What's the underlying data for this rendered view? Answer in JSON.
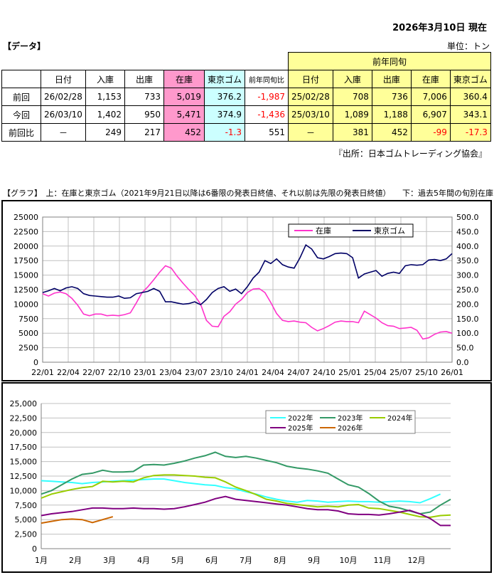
{
  "header": {
    "date_text": "2026年3月10日 現在",
    "data_label": "【データ】",
    "unit": "単位：トン"
  },
  "table": {
    "prev_year_label": "前年同旬",
    "headers_current": [
      "日付",
      "入庫",
      "出庫",
      "在庫",
      "東京ゴム",
      "前年同旬比"
    ],
    "headers_prev": [
      "日付",
      "入庫",
      "出庫",
      "在庫",
      "東京ゴム"
    ],
    "rows": [
      {
        "label": "前回",
        "date": "26/02/28",
        "in": "1,153",
        "out": "733",
        "stock": "5,019",
        "tokyo": "376.2",
        "yoy": "-1,987",
        "p_date": "25/02/28",
        "p_in": "708",
        "p_out": "736",
        "p_stock": "7,006",
        "p_tokyo": "360.4"
      },
      {
        "label": "今回",
        "date": "26/03/10",
        "in": "1,402",
        "out": "950",
        "stock": "5,471",
        "tokyo": "374.9",
        "yoy": "-1,436",
        "p_date": "25/03/10",
        "p_in": "1,089",
        "p_out": "1,188",
        "p_stock": "6,907",
        "p_tokyo": "343.1"
      },
      {
        "label": "前回比",
        "date": "－",
        "in": "249",
        "out": "217",
        "stock": "452",
        "tokyo": "-1.3",
        "yoy": "551",
        "p_date": "－",
        "p_in": "381",
        "p_out": "452",
        "p_stock": "-99",
        "p_tokyo": "-17.3"
      }
    ]
  },
  "source": "『出所：日本ゴムトレーディング協会』",
  "graph_label": "【グラフ】　上：在庫と東京ゴム（2021年9月21日以降は6番限の発表日終値、それ以前は先限の発表日終値）　　下：過去5年間の旬別在庫推移",
  "colors": {
    "stock": "#ff33cc",
    "tokyo": "#000066",
    "y2022": "#33ffff",
    "y2023": "#339966",
    "y2024": "#99cc00",
    "y2025": "#800080",
    "y2026": "#cc6600"
  },
  "chart_data": [
    {
      "type": "line",
      "title": "",
      "left_axis_ticks": [
        "0",
        "2500",
        "5000",
        "7500",
        "10000",
        "12500",
        "15000",
        "17500",
        "20000",
        "22500",
        "25000"
      ],
      "right_axis_ticks": [
        "0.0",
        "50.0",
        "100.0",
        "150.0",
        "200.0",
        "250.0",
        "300.0",
        "350.0",
        "400.0",
        "450.0",
        "500.0"
      ],
      "ylim_left": [
        0,
        25000
      ],
      "ylim_right": [
        0,
        500
      ],
      "x_ticks": [
        "22/01",
        "22/04",
        "22/07",
        "22/10",
        "23/01",
        "23/04",
        "23/07",
        "23/10",
        "24/01",
        "24/04",
        "24/07",
        "24/10",
        "25/01",
        "25/04",
        "25/07",
        "25/10",
        "26/01"
      ],
      "legend": [
        "在庫",
        "東京ゴム"
      ],
      "legend_position": "top-right",
      "series": [
        {
          "name": "在庫",
          "axis": "left",
          "values": [
            11800,
            11400,
            11900,
            12100,
            11800,
            11000,
            9800,
            8300,
            8000,
            8300,
            8300,
            8000,
            8100,
            8000,
            8200,
            8500,
            10200,
            12000,
            13000,
            14200,
            15500,
            16600,
            16200,
            14800,
            13600,
            12500,
            11500,
            10000,
            7200,
            6200,
            6100,
            7900,
            8700,
            10000,
            10800,
            12000,
            12600,
            12700,
            12000,
            10300,
            8400,
            7200,
            7000,
            7100,
            6900,
            6800,
            6000,
            5400,
            5800,
            6300,
            6900,
            7100,
            7000,
            7000,
            6800,
            8800,
            8200,
            7600,
            6800,
            6300,
            6200,
            5800,
            5900,
            6000,
            5500,
            4000,
            4200,
            4800,
            5200,
            5300,
            5000
          ]
        },
        {
          "name": "東京ゴム",
          "axis": "left",
          "values": [
            12000,
            12300,
            12700,
            12300,
            12800,
            13000,
            12700,
            11800,
            11500,
            11400,
            11300,
            11200,
            11200,
            11400,
            11000,
            11100,
            11800,
            12000,
            12200,
            12700,
            12200,
            10400,
            10400,
            10200,
            10000,
            10100,
            10400,
            9900,
            10800,
            12000,
            12700,
            13000,
            12200,
            12600,
            11800,
            13000,
            14500,
            15500,
            17500,
            17000,
            17800,
            16800,
            16400,
            16200,
            18000,
            20200,
            19500,
            18000,
            17800,
            18200,
            18700,
            18800,
            18700,
            18000,
            14500,
            15200,
            15500,
            15800,
            14800,
            15300,
            15500,
            15300,
            16600,
            16800,
            16700,
            16800,
            17600,
            17700,
            17500,
            17800,
            18700
          ]
        }
      ]
    },
    {
      "type": "line",
      "title": "",
      "y_axis_ticks": [
        "0",
        "2,500",
        "5,000",
        "7,500",
        "10,000",
        "12,500",
        "15,000",
        "17,500",
        "20,000",
        "22,500",
        "25,000"
      ],
      "ylim": [
        0,
        25000
      ],
      "x_ticks": [
        "1月",
        "2月",
        "3月",
        "4月",
        "5月",
        "6月",
        "7月",
        "8月",
        "9月",
        "10月",
        "11月",
        "12月"
      ],
      "legend": [
        "2022年",
        "2023年",
        "2024年",
        "2025年",
        "2026年"
      ],
      "legend_position": "top-right",
      "series": [
        {
          "name": "2022年",
          "values": [
            11700,
            11600,
            11500,
            11400,
            11200,
            11400,
            11500,
            11600,
            11700,
            11800,
            11900,
            12000,
            12000,
            11700,
            11400,
            11200,
            11000,
            10900,
            10500,
            10300,
            9800,
            9400,
            8900,
            8500,
            8200,
            8000,
            8300,
            8200,
            8000,
            8100,
            8200,
            8100,
            8100,
            8000,
            8100,
            8200,
            8100,
            7900,
            8600,
            9400
          ]
        },
        {
          "name": "2023年",
          "values": [
            9400,
            10000,
            11000,
            12000,
            12800,
            13000,
            13500,
            13200,
            13200,
            13300,
            14400,
            14500,
            14400,
            14700,
            15100,
            15600,
            16000,
            16600,
            15900,
            15700,
            15900,
            15600,
            15200,
            14800,
            14200,
            13900,
            13700,
            13400,
            13000,
            12000,
            11000,
            10600,
            9500,
            8200,
            7300,
            7000,
            6500,
            6000,
            6300,
            7500,
            8500
          ]
        },
        {
          "name": "2024年",
          "values": [
            8700,
            9400,
            9800,
            10200,
            10500,
            10700,
            11600,
            11500,
            11600,
            11500,
            12200,
            12600,
            12700,
            12700,
            12600,
            12500,
            12300,
            12200,
            11500,
            10600,
            10000,
            9300,
            8500,
            8200,
            7800,
            7600,
            7400,
            7200,
            7300,
            7200,
            7500,
            7600,
            7000,
            6900,
            6600,
            6300,
            5900,
            5500,
            5400,
            5700,
            5800
          ]
        },
        {
          "name": "2025年",
          "values": [
            5700,
            6000,
            6200,
            6400,
            6700,
            7000,
            7000,
            6900,
            6900,
            7000,
            6900,
            6900,
            6800,
            6900,
            7200,
            7600,
            8000,
            8600,
            9000,
            8500,
            8300,
            8100,
            7900,
            7700,
            7500,
            7200,
            6900,
            6700,
            6700,
            6500,
            6000,
            5900,
            5900,
            5800,
            6000,
            6300,
            6600,
            6000,
            5200,
            4000,
            4000
          ]
        },
        {
          "name": "2026年",
          "values": [
            4400,
            4700,
            5000,
            5100,
            5000,
            4500,
            5000,
            5500
          ]
        }
      ]
    }
  ]
}
